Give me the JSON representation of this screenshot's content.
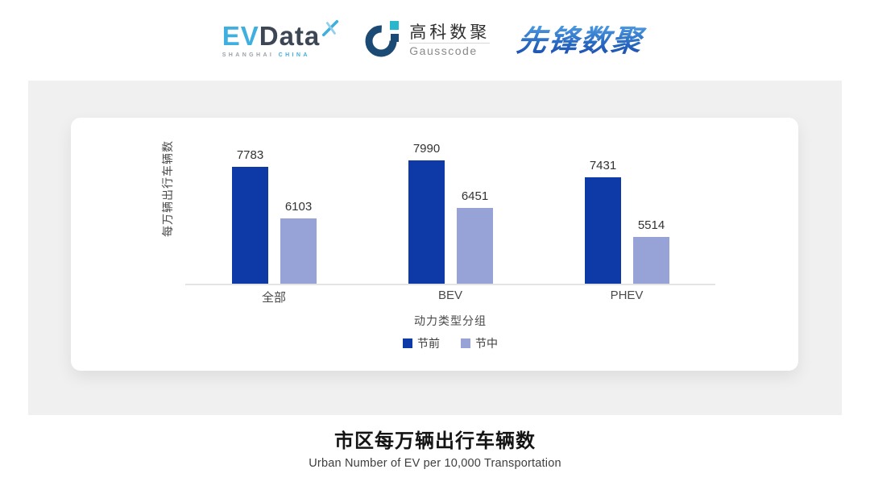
{
  "header": {
    "evdata": {
      "ev": "EV",
      "data": "Data",
      "sub_left": "SHANGHAI",
      "sub_right": "CHINA"
    },
    "gausscode": {
      "name_cn": "高科数聚",
      "name_en": "Gausscode"
    },
    "xianfeng": {
      "name": "先锋数聚"
    }
  },
  "chart_data": {
    "type": "bar",
    "title": "市区每万辆出行车辆数",
    "subtitle": "Urban Number of EV per 10,000 Transportation",
    "xlabel": "动力类型分组",
    "ylabel": "每万辆出行车辆数",
    "categories": [
      "全部",
      "BEV",
      "PHEV"
    ],
    "series": [
      {
        "name": "节前",
        "color": "#0d3aa6",
        "values": [
          7783,
          7990,
          7431
        ]
      },
      {
        "name": "节中",
        "color": "#97a2d6",
        "values": [
          6103,
          6451,
          5514
        ]
      }
    ],
    "ylim": [
      4000,
      8200
    ],
    "grid": false,
    "legend_position": "bottom",
    "value_labels": true
  },
  "colors": {
    "panel_bg": "#f0f0f0",
    "axis_line": "#e4e4e4",
    "bar_dark": "#0d3aa6",
    "bar_light": "#97a2d6",
    "evdata_blue": "#3fafe0",
    "evdata_dark": "#3c4654",
    "gausscode_navy": "#1b4a74",
    "gausscode_cyan": "#29b7cd",
    "xianfeng_blue": "#2b6fc7"
  }
}
